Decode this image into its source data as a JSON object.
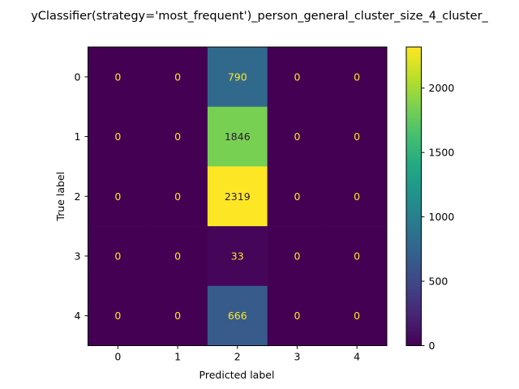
{
  "chart_data": {
    "type": "heatmap",
    "title": "yClassifier(strategy='most_frequent')_person_general_cluster_size_4_cluster_",
    "xlabel": "Predicted label",
    "ylabel": "True label",
    "x_tick_labels": [
      "0",
      "1",
      "2",
      "3",
      "4"
    ],
    "y_tick_labels": [
      "0",
      "1",
      "2",
      "3",
      "4"
    ],
    "matrix": [
      [
        0,
        0,
        790,
        0,
        0
      ],
      [
        0,
        0,
        1846,
        0,
        0
      ],
      [
        0,
        0,
        2319,
        0,
        0
      ],
      [
        0,
        0,
        33,
        0,
        0
      ],
      [
        0,
        0,
        666,
        0,
        0
      ]
    ],
    "colormap": "viridis",
    "color_range": [
      0,
      2319
    ],
    "colorbar_ticks": [
      0,
      500,
      1000,
      1500,
      2000
    ],
    "grid": false
  }
}
